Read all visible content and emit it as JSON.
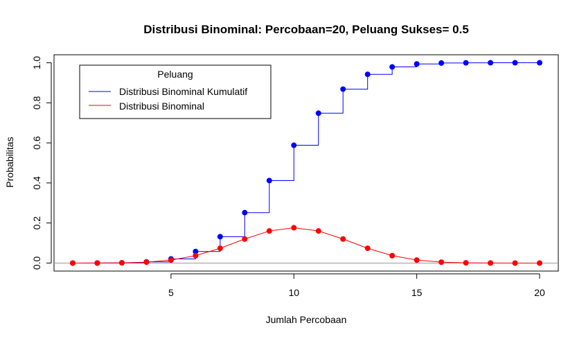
{
  "chart_data": {
    "type": "line",
    "title": "Distribusi Binominal: Percobaan=20, Peluang Sukses= 0.5",
    "xlabel": "Jumlah Percobaan",
    "ylabel": "Probabilitas",
    "xlim": [
      0.24,
      20.76
    ],
    "ylim": [
      -0.04,
      1.04
    ],
    "xticks": [
      "5",
      "10",
      "15",
      "20"
    ],
    "yticks": [
      "0.0",
      "0.2",
      "0.4",
      "0.6",
      "0.8",
      "1.0"
    ],
    "x": [
      1,
      2,
      3,
      4,
      5,
      6,
      7,
      8,
      9,
      10,
      11,
      12,
      13,
      14,
      15,
      16,
      17,
      18,
      19,
      20
    ],
    "reference_line_y": 0,
    "legend": {
      "title": "Peluang",
      "position": "top-left",
      "entries": [
        "Distribusi Binominal Kumulatif",
        "Distribusi Binominal"
      ]
    },
    "series": [
      {
        "name": "Distribusi Binominal Kumulatif",
        "style": "step",
        "color": "#0000ff",
        "values": [
          2e-05,
          0.0002,
          0.0013,
          0.0059,
          0.0207,
          0.0577,
          0.1316,
          0.2517,
          0.4119,
          0.5881,
          0.7483,
          0.8684,
          0.9423,
          0.9793,
          0.9941,
          0.9987,
          0.9998,
          1.0,
          1.0,
          1.0
        ]
      },
      {
        "name": "Distribusi Binominal",
        "style": "line",
        "color": "#ff0000",
        "values": [
          2e-05,
          0.0002,
          0.0011,
          0.0046,
          0.0148,
          0.037,
          0.0739,
          0.1201,
          0.1602,
          0.1762,
          0.1602,
          0.1201,
          0.0739,
          0.037,
          0.0148,
          0.0046,
          0.0011,
          0.0002,
          2e-05,
          0.0
        ]
      }
    ]
  }
}
